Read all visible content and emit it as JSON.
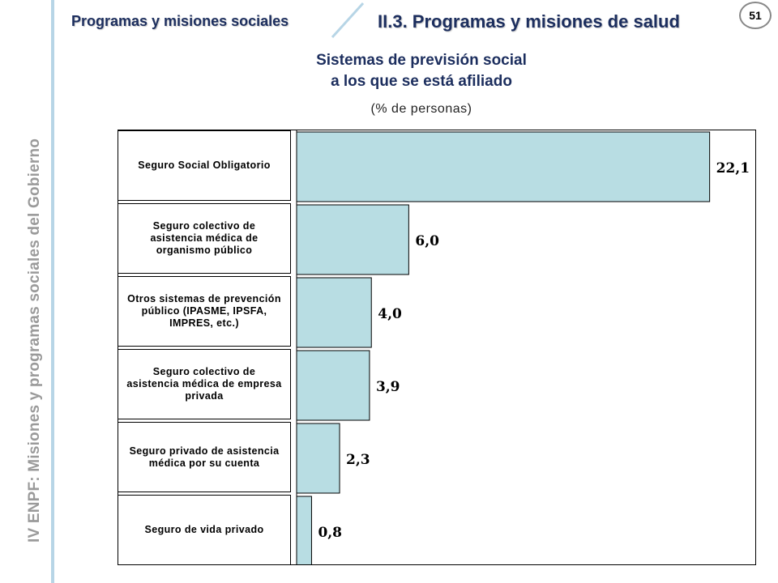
{
  "sidebar": {
    "text": "IV ENPF:  Misiones y programas sociales del Gobierno"
  },
  "header": {
    "section": "Programas y misiones sociales",
    "subsection": "II.3. Programas y misiones de salud",
    "page_number": "51"
  },
  "chart_data": {
    "type": "bar",
    "orientation": "horizontal",
    "title": "Sistemas de previsión social\na los que se está afiliado",
    "subtitle": "(% de personas)",
    "categories": [
      "Seguro Social Obligatorio",
      "Seguro colectivo de asistencia médica de organismo público",
      "Otros sistemas de prevención público (IPASME, IPSFA, IMPRES, etc.)",
      "Seguro colectivo de asistencia médica de empresa privada",
      "Seguro privado de asistencia médica por su cuenta",
      "Seguro de vida privado"
    ],
    "values": [
      22.1,
      6.0,
      4.0,
      3.9,
      2.3,
      0.8
    ],
    "value_labels": [
      "22,1",
      "6,0",
      "4,0",
      "3,9",
      "2,3",
      "0,8"
    ],
    "xlim": [
      0,
      24.5
    ],
    "grid": false,
    "bar_color": "#b8dde3"
  }
}
